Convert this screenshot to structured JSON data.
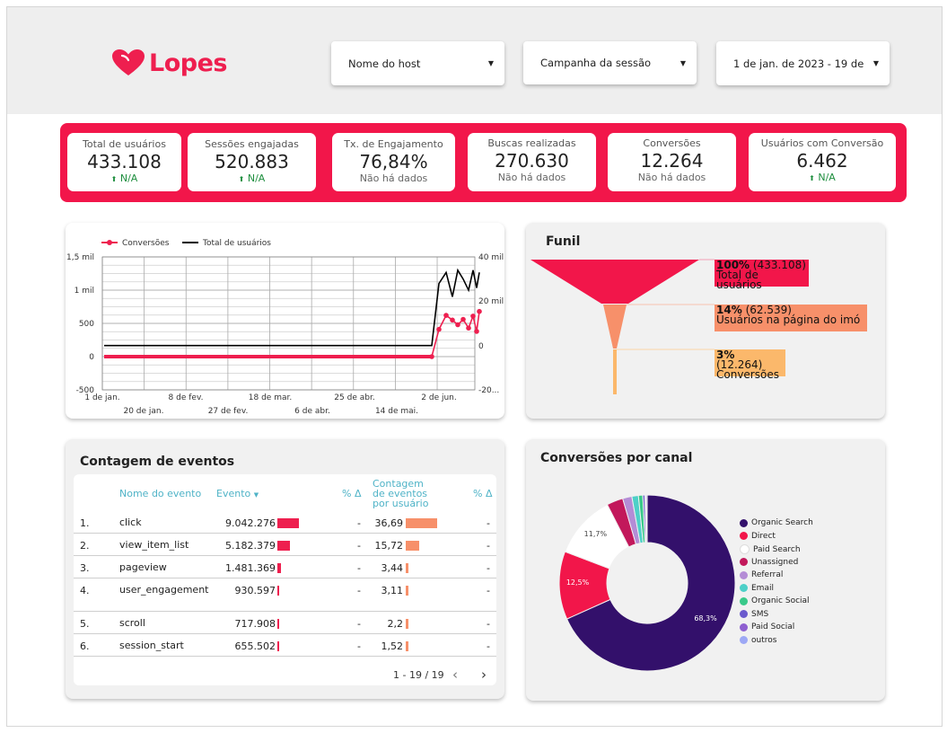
{
  "header": {
    "brand": "Lopes",
    "filters": [
      {
        "label": "Nome do host"
      },
      {
        "label": "Campanha da sessão"
      },
      {
        "label": "1 de jan. de 2023 - 19 de ..."
      }
    ]
  },
  "kpis": [
    {
      "label": "Total de usuários",
      "value": "433.108",
      "sub": "N/A",
      "trend": "up"
    },
    {
      "label": "Sessões engajadas",
      "value": "520.883",
      "sub": "N/A",
      "trend": "up"
    },
    {
      "label": "Tx. de Engajamento",
      "value": "76,84%",
      "sub": "Não há dados",
      "trend": ""
    },
    {
      "label": "Buscas realizadas",
      "value": "270.630",
      "sub": "Não há dados",
      "trend": ""
    },
    {
      "label": "Conversões",
      "value": "12.264",
      "sub": "Não há dados",
      "trend": ""
    },
    {
      "label": "Usuários com Conversão",
      "value": "6.462",
      "sub": "N/A",
      "trend": "up"
    }
  ],
  "colors": {
    "brand": "#ee1f4f",
    "kpi_band": "#f2164a",
    "positive": "#1e8e3e",
    "table_header": "#4fb3c7",
    "bar_events": "#ee1f4f",
    "bar_per_user": "#f7906a"
  },
  "icons": {
    "logo": "heart-icon",
    "dropdown": "caret-down-icon",
    "trend": "arrow-up-icon",
    "sort": "sort-desc-icon",
    "pager_prev": "chevron-left-icon",
    "pager_next": "chevron-right-icon"
  },
  "line_chart": {
    "legend": [
      "Conversões",
      "Total de usuários"
    ],
    "left_ticks": [
      "1,5 mil",
      "1 mil",
      "500",
      "0",
      "-500"
    ],
    "right_ticks": [
      "40 mil",
      "20 mil",
      "0",
      "-20..."
    ],
    "x_ticks_top": [
      "1 de jan.",
      "8 de fev.",
      "18 de mar.",
      "25 de abr.",
      "2 de jun."
    ],
    "x_ticks_bottom": [
      "20 de jan.",
      "27 de fev.",
      "6 de abr.",
      "14 de mai."
    ]
  },
  "funnel": {
    "title": "Funil",
    "steps": [
      {
        "pct": "100%",
        "count": "(433.108)",
        "name": "Total de usuários",
        "color": "#f2164a"
      },
      {
        "pct": "14%",
        "count": "(62.539)",
        "name": "Usuários na página do imó",
        "color": "#f7906a"
      },
      {
        "pct": "3%",
        "count": "(12.264)",
        "name": "Conversões",
        "color": "#fbb86b"
      }
    ]
  },
  "events": {
    "title": "Contagem de eventos",
    "headers": {
      "name": "Nome do evento",
      "event": "Evento",
      "delta1": "% Δ",
      "per_user": "Contagem de eventos por usuário",
      "delta2": "% Δ"
    },
    "rows": [
      {
        "idx": "1.",
        "name": "click",
        "count": "9.042.276",
        "d1": "-",
        "per_user": "36,69",
        "d2": "-"
      },
      {
        "idx": "2.",
        "name": "view_item_list",
        "count": "5.182.379",
        "d1": "-",
        "per_user": "15,72",
        "d2": "-"
      },
      {
        "idx": "3.",
        "name": "pageview",
        "count": "1.481.369",
        "d1": "-",
        "per_user": "3,44",
        "d2": "-"
      },
      {
        "idx": "4.",
        "name": "user_engagement",
        "count": "930.597",
        "d1": "-",
        "per_user": "3,11",
        "d2": "-"
      },
      {
        "idx": "5.",
        "name": "scroll",
        "count": "717.908",
        "d1": "-",
        "per_user": "2,2",
        "d2": "-"
      },
      {
        "idx": "6.",
        "name": "session_start",
        "count": "655.502",
        "d1": "-",
        "per_user": "1,52",
        "d2": "-"
      }
    ],
    "pager": "1 - 19 / 19"
  },
  "channels": {
    "title": "Conversões por canal",
    "slices": [
      {
        "name": "Organic Search",
        "value": 68.3,
        "label": "68,3%",
        "color": "#33106b"
      },
      {
        "name": "Direct",
        "value": 12.5,
        "label": "12,5%",
        "color": "#f2164a"
      },
      {
        "name": "Paid Search",
        "value": 11.7,
        "label": "11,7%",
        "color": "#ffffff"
      },
      {
        "name": "Unassigned",
        "value": 3.0,
        "label": "",
        "color": "#c2185b"
      },
      {
        "name": "Referral",
        "value": 1.7,
        "label": "",
        "color": "#b48cd6"
      },
      {
        "name": "Email",
        "value": 1.2,
        "label": "",
        "color": "#4dd0c8"
      },
      {
        "name": "Organic Social",
        "value": 0.8,
        "label": "",
        "color": "#39c98a"
      },
      {
        "name": "SMS",
        "value": 0.4,
        "label": "",
        "color": "#6a5acd"
      },
      {
        "name": "Paid Social",
        "value": 0.2,
        "label": "",
        "color": "#8e5fd0"
      },
      {
        "name": "outros",
        "value": 0.2,
        "label": "",
        "color": "#9da8f5"
      }
    ]
  },
  "chart_data": [
    {
      "type": "line",
      "title": "",
      "series": [
        {
          "name": "Conversões",
          "axis": "left",
          "color": "#ee1f4f",
          "x": [
            "1 de jan.",
            "2 de jun.",
            "4 de jun.",
            "6 de jun.",
            "8 de jun.",
            "10 de jun.",
            "12 de jun.",
            "14 de jun.",
            "16 de jun.",
            "18 de jun.",
            "19 de jun."
          ],
          "values": [
            0,
            0,
            410,
            620,
            550,
            480,
            560,
            430,
            610,
            380,
            680
          ]
        },
        {
          "name": "Total de usuários",
          "axis": "right",
          "color": "#000000",
          "x": [
            "1 de jan.",
            "2 de jun.",
            "4 de jun.",
            "6 de jun.",
            "8 de jun.",
            "10 de jun.",
            "12 de jun.",
            "14 de jun.",
            "16 de jun.",
            "18 de jun.",
            "19 de jun."
          ],
          "values": [
            0,
            0,
            28000,
            33000,
            22000,
            34000,
            30000,
            25000,
            34000,
            26000,
            33000
          ]
        }
      ],
      "ylim_left": [
        -500,
        1500
      ],
      "ylim_right": [
        -20000,
        40000
      ],
      "grid": true,
      "legend": "top-left"
    },
    {
      "type": "bar",
      "title": "Funil",
      "categories": [
        "Total de usuários",
        "Usuários na página do imó",
        "Conversões"
      ],
      "values": [
        433108,
        62539,
        12264
      ],
      "percent_labels": [
        "100%",
        "14%",
        "3%"
      ]
    },
    {
      "type": "pie",
      "title": "Conversões por canal",
      "categories": [
        "Organic Search",
        "Direct",
        "Paid Search",
        "Unassigned",
        "Referral",
        "Email",
        "Organic Social",
        "SMS",
        "Paid Social",
        "outros"
      ],
      "values": [
        68.3,
        12.5,
        11.7,
        3.0,
        1.7,
        1.2,
        0.8,
        0.4,
        0.2,
        0.2
      ],
      "legend": "right"
    }
  ]
}
